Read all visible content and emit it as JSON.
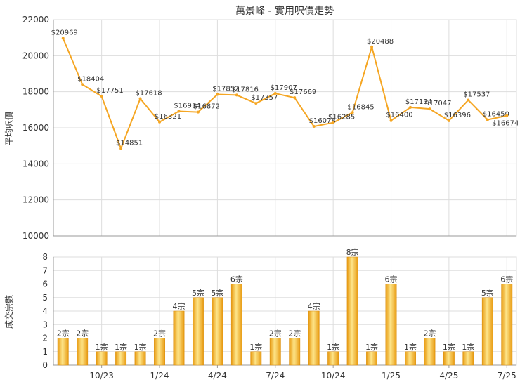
{
  "colors": {
    "line": "#f5a623",
    "bar_light": "#fde58a",
    "bar_dark": "#e89a10",
    "grid": "#dddddd",
    "axis": "#999999",
    "text": "#333333"
  },
  "chart_data": [
    {
      "type": "line",
      "title": "萬景峰 - 實用呎價走勢",
      "ylabel": "平均呎價",
      "ylim": [
        10000,
        22000
      ],
      "yticks": [
        10000,
        12000,
        14000,
        16000,
        18000,
        20000,
        22000
      ],
      "grid": true,
      "values": [
        20969,
        18404,
        17751,
        14851,
        17618,
        16321,
        16914,
        16872,
        17852,
        17816,
        17357,
        17907,
        17669,
        16078,
        16285,
        16845,
        20488,
        16400,
        17134,
        17047,
        16396,
        17537,
        16450,
        16674
      ],
      "data_labels": [
        "$20969",
        "$18404",
        "$17751",
        "$14851",
        "$17618",
        "$16321",
        "$16914",
        "$16872",
        "$17852",
        "$17816",
        "$17357",
        "$17907",
        "$17669",
        "$16078",
        "$16285",
        "$16845",
        "$20488",
        "$16400",
        "$17134",
        "$17047",
        "$16396",
        "$17537",
        "$16450",
        "$16674"
      ]
    },
    {
      "type": "bar",
      "ylabel": "成交宗數",
      "ylim": [
        0,
        8
      ],
      "yticks": [
        0,
        1,
        2,
        3,
        4,
        5,
        6,
        7,
        8
      ],
      "grid": true,
      "values": [
        2,
        2,
        1,
        1,
        1,
        2,
        4,
        5,
        5,
        6,
        1,
        2,
        2,
        4,
        1,
        8,
        1,
        6,
        1,
        2,
        1,
        1,
        5,
        6
      ],
      "data_labels": [
        "2宗",
        "2宗",
        "1宗",
        "1宗",
        "1宗",
        "2宗",
        "4宗",
        "5宗",
        "5宗",
        "6宗",
        "1宗",
        "2宗",
        "2宗",
        "4宗",
        "1宗",
        "8宗",
        "1宗",
        "6宗",
        "1宗",
        "2宗",
        "1宗",
        "1宗",
        "5宗",
        "6宗"
      ],
      "x_tick_labels": [
        {
          "index": 2,
          "label": "10/23"
        },
        {
          "index": 5,
          "label": "1/24"
        },
        {
          "index": 8,
          "label": "4/24"
        },
        {
          "index": 11,
          "label": "7/24"
        },
        {
          "index": 14,
          "label": "10/24"
        },
        {
          "index": 17,
          "label": "1/25"
        },
        {
          "index": 20,
          "label": "4/25"
        },
        {
          "index": 23,
          "label": "7/25"
        }
      ]
    }
  ]
}
